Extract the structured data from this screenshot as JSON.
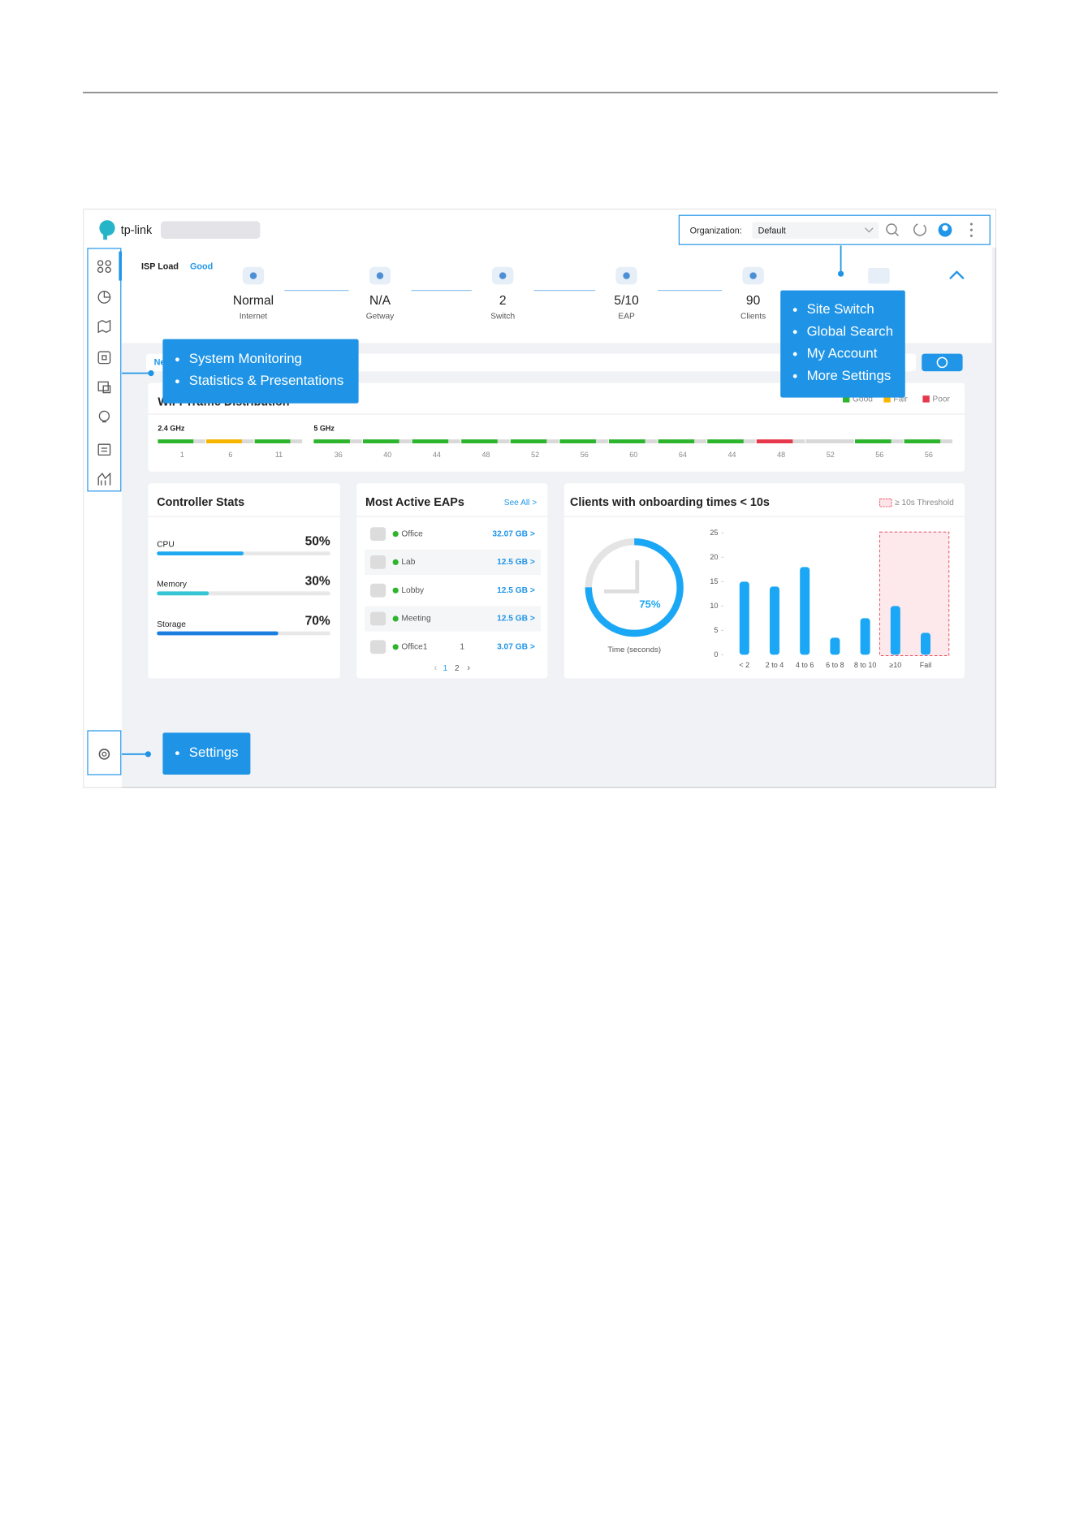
{
  "header": {
    "logo": "tp-link",
    "org_label": "Organization:",
    "org_value": "Default"
  },
  "topology": {
    "isp_label": "ISP Load",
    "isp_status": "Good",
    "nodes": [
      {
        "value": "Normal",
        "label": "Internet"
      },
      {
        "value": "N/A",
        "label": "Getway"
      },
      {
        "value": "2",
        "label": "Switch"
      },
      {
        "value": "5/10",
        "label": "EAP"
      },
      {
        "value": "90",
        "label": "Clients"
      }
    ]
  },
  "tab": "Ne",
  "callouts": {
    "sidebar": [
      "System Monitoring",
      "Statistics & Presentations"
    ],
    "top": [
      "Site Switch",
      "Global Search",
      "My Account",
      "More Settings"
    ],
    "settings": [
      "Settings"
    ]
  },
  "wifi": {
    "title": "WiFi Traffic Distribution",
    "legend": [
      {
        "name": "Good",
        "color": "#2db52d"
      },
      {
        "name": "Fair",
        "color": "#f7b500"
      },
      {
        "name": "Poor",
        "color": "#e5394b"
      }
    ],
    "bands": [
      {
        "name": "2.4 GHz",
        "channels": [
          1,
          6,
          11
        ],
        "colors": [
          "#2db52d",
          "#f7b500",
          "#2db52d"
        ]
      },
      {
        "name": "5 GHz",
        "channels": [
          36,
          40,
          44,
          48,
          52,
          56,
          60,
          64,
          44,
          48,
          52,
          56,
          56
        ],
        "colors": [
          "#2db52d",
          "#2db52d",
          "#2db52d",
          "#2db52d",
          "#2db52d",
          "#2db52d",
          "#2db52d",
          "#2db52d",
          "#2db52d",
          "#e5394b",
          "#d9d9d9",
          "#2db52d",
          "#2db52d"
        ]
      }
    ]
  },
  "controller_stats": {
    "title": "Controller Stats",
    "items": [
      {
        "name": "CPU",
        "value": 50,
        "label": "50%",
        "color": "#1fa9f0"
      },
      {
        "name": "Memory",
        "value": 30,
        "label": "30%",
        "color": "#35c6d6"
      },
      {
        "name": "Storage",
        "value": 70,
        "label": "70%",
        "color": "#1c7fe0"
      }
    ]
  },
  "eaps": {
    "title": "Most Active EAPs",
    "see_all": "See All >",
    "rows": [
      {
        "name": "Office",
        "usage": "32.07 GB >"
      },
      {
        "name": "Lab",
        "usage": "12.5 GB >"
      },
      {
        "name": "Lobby",
        "usage": "12.5 GB >"
      },
      {
        "name": "Meeting",
        "usage": "12.5 GB >"
      },
      {
        "name": "Office1",
        "extra": "1",
        "usage": "3.07 GB >"
      }
    ],
    "pages": [
      "1",
      "2"
    ]
  },
  "onboarding": {
    "title": "Clients with onboarding times < 10s",
    "threshold": "≥ 10s Threshold",
    "gauge_value": 75,
    "gauge_label": "75%",
    "gauge_caption": "Time (seconds)",
    "color": "#1aa7f5",
    "categories": [
      "< 2",
      "2 to 4",
      "4 to 6",
      "6 to 8",
      "8 to 10",
      "≥10",
      "Fail"
    ],
    "values": [
      15,
      14,
      18,
      3.5,
      7.5,
      10,
      4.5
    ],
    "ylim": [
      0,
      25
    ],
    "yticks": [
      0,
      5,
      10,
      15,
      20,
      25
    ]
  }
}
